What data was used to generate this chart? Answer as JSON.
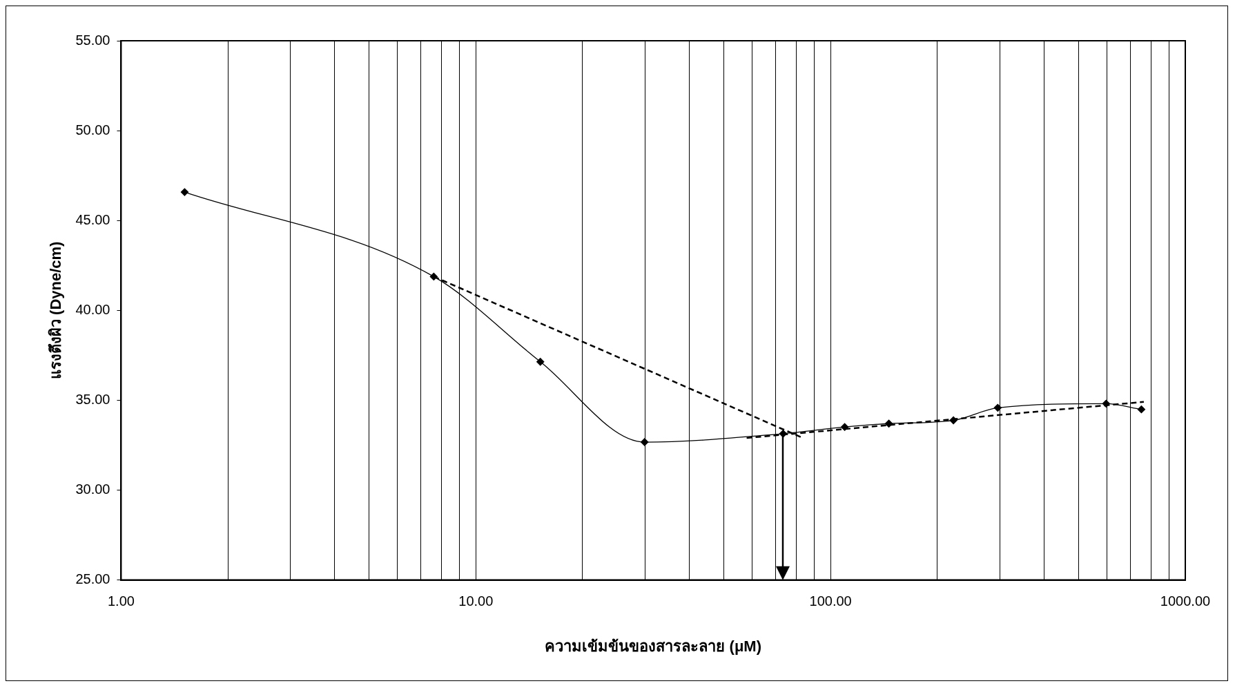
{
  "chart_data": {
    "type": "line",
    "xlabel": "ความเข้มข้นของสารละลาย (μM)",
    "ylabel": "แรงตึงผิว (Dyne/cm)",
    "log": "x",
    "grid": "x",
    "legend": false,
    "xlim": [
      1,
      1000
    ],
    "ylim": [
      25,
      55
    ],
    "xticks": [
      {
        "value": 1,
        "label": "1.00"
      },
      {
        "value": 2,
        "label": null
      },
      {
        "value": 3,
        "label": null
      },
      {
        "value": 4,
        "label": null
      },
      {
        "value": 5,
        "label": null
      },
      {
        "value": 6,
        "label": null
      },
      {
        "value": 7,
        "label": null
      },
      {
        "value": 8,
        "label": null
      },
      {
        "value": 9,
        "label": null
      },
      {
        "value": 10,
        "label": "10.00"
      },
      {
        "value": 20,
        "label": null
      },
      {
        "value": 30,
        "label": null
      },
      {
        "value": 40,
        "label": null
      },
      {
        "value": 50,
        "label": null
      },
      {
        "value": 60,
        "label": null
      },
      {
        "value": 70,
        "label": null
      },
      {
        "value": 80,
        "label": null
      },
      {
        "value": 90,
        "label": null
      },
      {
        "value": 100,
        "label": "100.00"
      },
      {
        "value": 200,
        "label": null
      },
      {
        "value": 300,
        "label": null
      },
      {
        "value": 400,
        "label": null
      },
      {
        "value": 500,
        "label": null
      },
      {
        "value": 600,
        "label": null
      },
      {
        "value": 700,
        "label": null
      },
      {
        "value": 800,
        "label": null
      },
      {
        "value": 900,
        "label": null
      },
      {
        "value": 1000,
        "label": "1000.00"
      }
    ],
    "yticks": [
      {
        "value": 25,
        "label": "25.00"
      },
      {
        "value": 30,
        "label": "30.00"
      },
      {
        "value": 35,
        "label": "35.00"
      },
      {
        "value": 40,
        "label": "40.00"
      },
      {
        "value": 45,
        "label": "45.00"
      },
      {
        "value": 50,
        "label": "50.00"
      },
      {
        "value": 55,
        "label": "55.00"
      }
    ],
    "series": [
      {
        "color": "#000000",
        "marker": "diamond",
        "line_style": "solid",
        "x": [
          1.51,
          7.61,
          15.2,
          29.9,
          73.5,
          109.6,
          146,
          222,
          296,
          598,
          752
        ],
        "values": [
          46.58,
          41.88,
          37.14,
          32.67,
          33.14,
          33.51,
          33.7,
          33.88,
          34.58,
          34.81,
          34.49
        ]
      },
      {
        "color": "#000000",
        "marker": "none",
        "line_style": "dashed",
        "x": [
          7.61,
          82.4
        ],
        "values": [
          41.88,
          32.95
        ]
      },
      {
        "color": "#000000",
        "marker": "none",
        "line_style": "dashed",
        "x": [
          58,
          764
        ],
        "values": [
          32.9,
          34.91
        ]
      }
    ],
    "ref_lines": [
      {
        "axis": "x",
        "value": 73.5
      }
    ]
  }
}
